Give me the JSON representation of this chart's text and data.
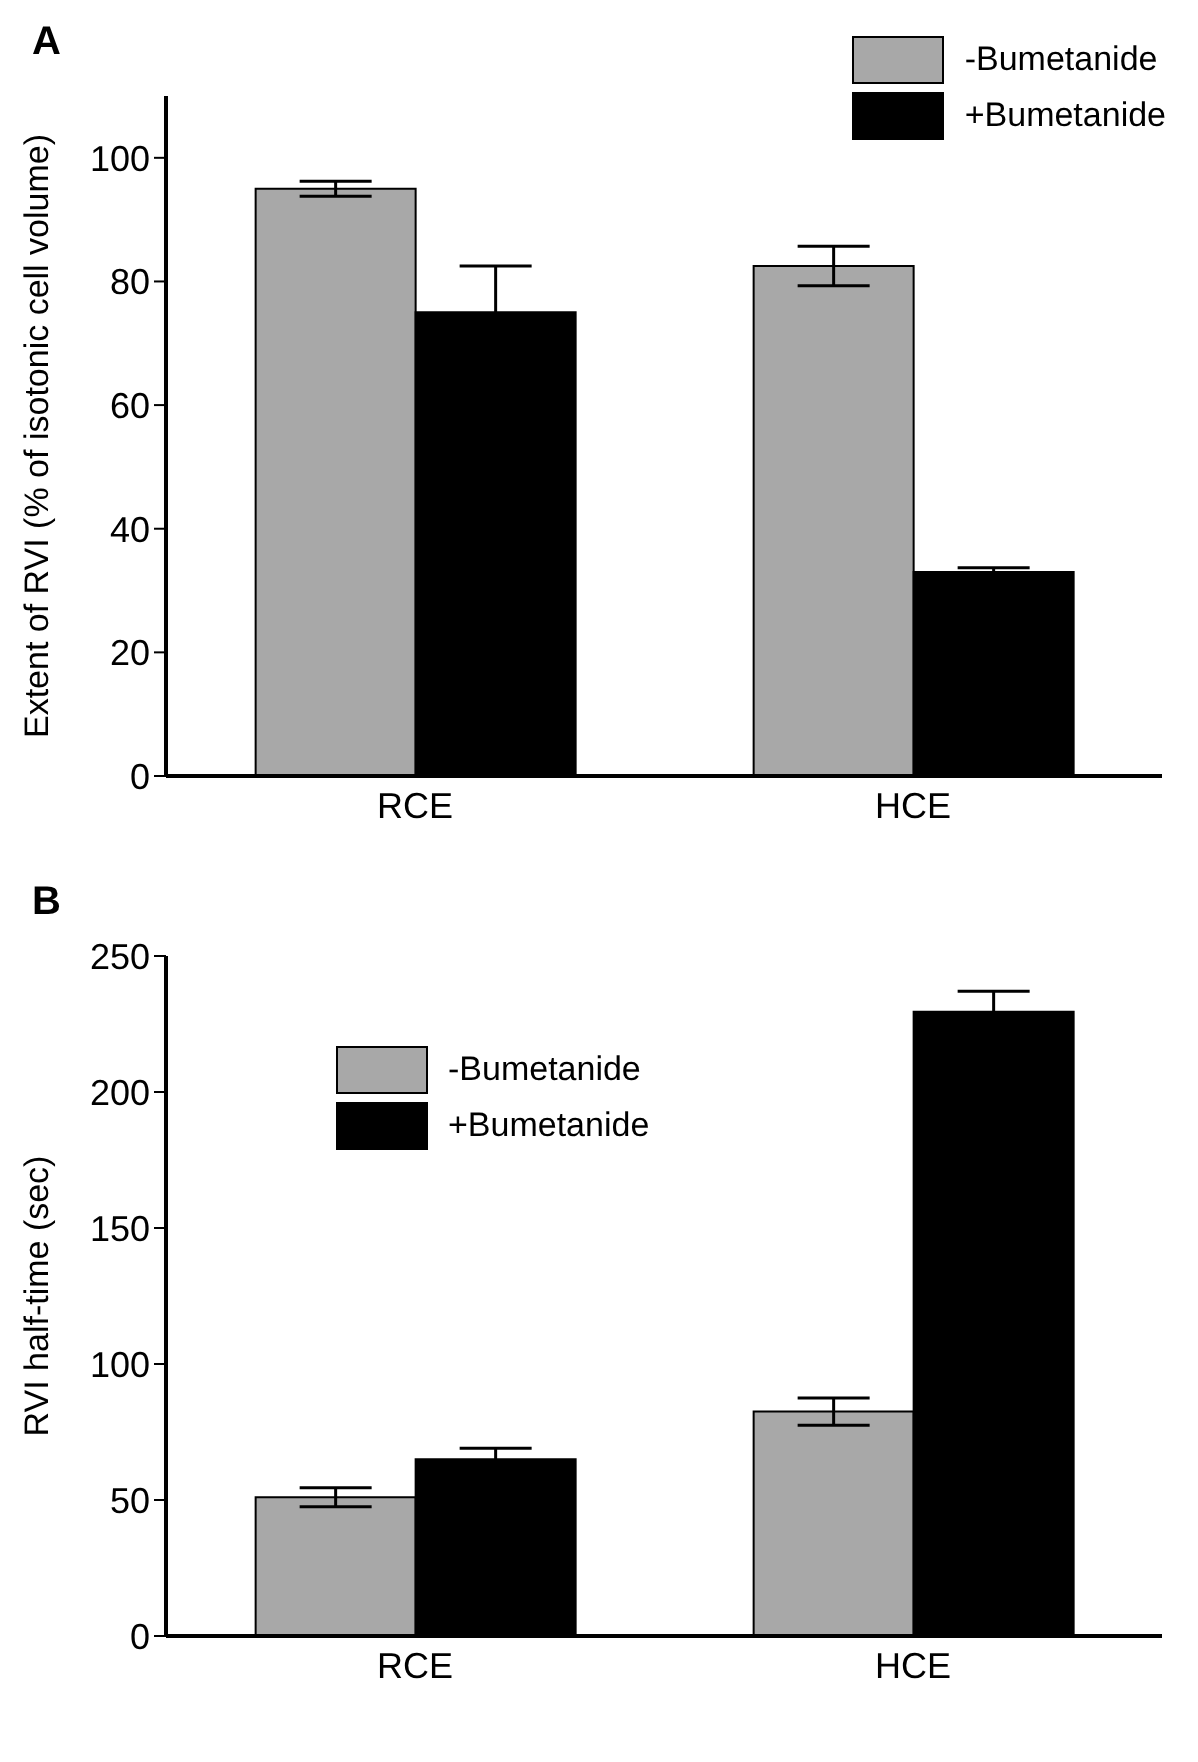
{
  "chart_data": [
    {
      "type": "bar",
      "title": "A",
      "ylabel": "Extent of RVI (% of isotonic cell volume)",
      "categories": [
        "RCE",
        "HCE"
      ],
      "series": [
        {
          "name": "-Bumetanide",
          "color": "#a8a8a8",
          "values": [
            95,
            82.5
          ],
          "errors": [
            1.2,
            3.2
          ]
        },
        {
          "name": "+Bumetanide",
          "color": "#000000",
          "values": [
            75,
            33
          ],
          "errors": [
            7.5,
            0.7
          ]
        }
      ],
      "ylim": [
        0,
        110
      ],
      "yticks": [
        0,
        20,
        40,
        60,
        80,
        100
      ],
      "grid": false,
      "legend": "top right"
    },
    {
      "type": "bar",
      "title": "B",
      "ylabel": "RVI half-time (sec)",
      "categories": [
        "RCE",
        "HCE"
      ],
      "series": [
        {
          "name": "-Bumetanide",
          "color": "#a8a8a8",
          "values": [
            51,
            82.5
          ],
          "errors": [
            3.5,
            5
          ]
        },
        {
          "name": "+Bumetanide",
          "color": "#000000",
          "values": [
            65,
            229.5
          ],
          "errors": [
            4,
            7.5
          ]
        }
      ],
      "ylim": [
        0,
        250
      ],
      "yticks": [
        0,
        50,
        100,
        150,
        200,
        250
      ],
      "grid": false,
      "legend": "top left"
    }
  ]
}
